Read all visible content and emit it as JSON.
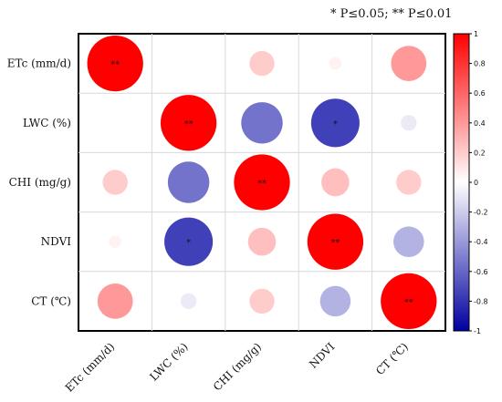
{
  "significance_note": "* P≤0.05; ** P≤0.01",
  "chart_data": {
    "type": "heatmap",
    "subtype": "correlation-circle-matrix",
    "variables": [
      "ETc (mm/d)",
      "LWC (%)",
      "CHI (mg/g)",
      "NDVI",
      "CT (℃)"
    ],
    "matrix": [
      [
        1.0,
        0.0,
        0.2,
        0.05,
        0.4
      ],
      [
        0.0,
        1.0,
        -0.55,
        -0.75,
        -0.08
      ],
      [
        0.2,
        -0.55,
        1.0,
        0.25,
        0.2
      ],
      [
        0.05,
        -0.75,
        0.25,
        1.0,
        -0.3
      ],
      [
        0.4,
        -0.08,
        0.2,
        -0.3,
        1.0
      ]
    ],
    "significance": [
      [
        "**",
        "",
        "",
        "",
        ""
      ],
      [
        "",
        "**",
        "",
        "*",
        ""
      ],
      [
        "",
        "",
        "**",
        "",
        ""
      ],
      [
        "",
        "*",
        "",
        "**",
        ""
      ],
      [
        "",
        "",
        "",
        "",
        "**"
      ]
    ],
    "colorbar": {
      "range": [
        -1,
        1
      ],
      "ticks": [
        "1",
        "0.8",
        "0.6",
        "0.4",
        "0.2",
        "0",
        "-0.2",
        "-0.4",
        "-0.6",
        "-0.8",
        "-1"
      ],
      "high_color": "#ff0000",
      "mid_color": "#ffffff",
      "low_color": "#0000a0"
    },
    "grid": true
  }
}
